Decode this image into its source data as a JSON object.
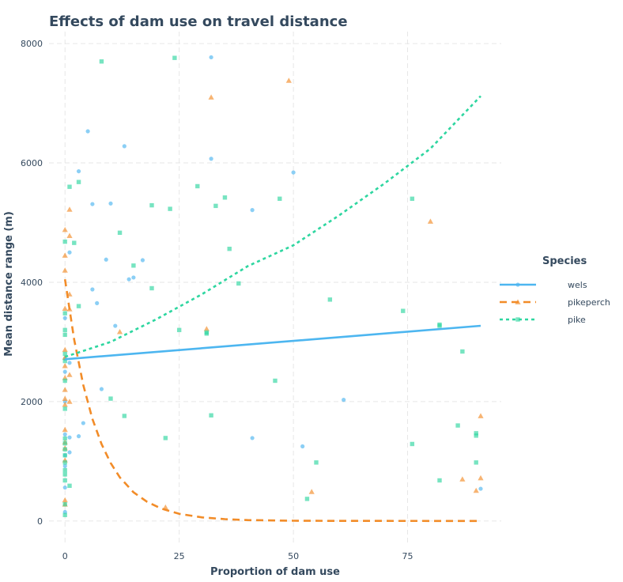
{
  "chart_data": {
    "type": "scatter",
    "title": "Effects of dam use on travel distance",
    "xlabel": "Proportion of dam use",
    "ylabel": "Mean distance range (m)",
    "xlim": [
      -3.5,
      95.5
    ],
    "ylim": [
      -400,
      8200
    ],
    "xticks": [
      0,
      25,
      50,
      75
    ],
    "yticks": [
      0,
      2000,
      4000,
      6000,
      8000
    ],
    "grid": true,
    "legend": {
      "title": "Species",
      "position": "right",
      "items": [
        "wels",
        "pikeperch",
        "pike"
      ]
    },
    "series": [
      {
        "name": "wels",
        "color": "#4db6f0",
        "marker": "circle",
        "line_style": "solid",
        "fit": [
          [
            0,
            2710
          ],
          [
            91,
            3270
          ]
        ],
        "points": [
          [
            0,
            2720
          ],
          [
            0,
            3400
          ],
          [
            0,
            2500
          ],
          [
            0,
            2000
          ],
          [
            0,
            1450
          ],
          [
            0,
            1100
          ],
          [
            0,
            920
          ],
          [
            0,
            560
          ],
          [
            0,
            150
          ],
          [
            1,
            4500
          ],
          [
            1,
            2650
          ],
          [
            1,
            1150
          ],
          [
            1,
            1400
          ],
          [
            3,
            5860
          ],
          [
            3,
            1420
          ],
          [
            4,
            1640
          ],
          [
            5,
            6530
          ],
          [
            6,
            5310
          ],
          [
            6,
            3880
          ],
          [
            7,
            3650
          ],
          [
            8,
            2210
          ],
          [
            9,
            4380
          ],
          [
            10,
            5320
          ],
          [
            11,
            3270
          ],
          [
            13,
            6280
          ],
          [
            14,
            4050
          ],
          [
            15,
            4080
          ],
          [
            17,
            4370
          ],
          [
            32,
            7770
          ],
          [
            32,
            6070
          ],
          [
            41,
            5210
          ],
          [
            41,
            1390
          ],
          [
            50,
            5840
          ],
          [
            52,
            1250
          ],
          [
            61,
            2030
          ],
          [
            91,
            540
          ]
        ]
      },
      {
        "name": "pikeperch",
        "color": "#f28c28",
        "marker": "triangle",
        "line_style": "dashed",
        "fit": [
          [
            0,
            4050
          ],
          [
            2,
            3040
          ],
          [
            4,
            2280
          ],
          [
            6,
            1710
          ],
          [
            8,
            1290
          ],
          [
            10,
            970
          ],
          [
            12,
            730
          ],
          [
            15,
            480
          ],
          [
            18,
            320
          ],
          [
            21,
            210
          ],
          [
            25,
            120
          ],
          [
            30,
            60
          ],
          [
            35,
            30
          ],
          [
            40,
            15
          ],
          [
            50,
            4
          ],
          [
            60,
            1
          ],
          [
            91,
            0
          ]
        ],
        "points": [
          [
            0,
            4880
          ],
          [
            0,
            4450
          ],
          [
            0,
            4200
          ],
          [
            0,
            3560
          ],
          [
            0,
            2870
          ],
          [
            0,
            2740
          ],
          [
            0,
            2600
          ],
          [
            0,
            2400
          ],
          [
            0,
            2200
          ],
          [
            0,
            2050
          ],
          [
            0,
            1950
          ],
          [
            0,
            1530
          ],
          [
            0,
            1320
          ],
          [
            0,
            1220
          ],
          [
            0,
            1020
          ],
          [
            0,
            350
          ],
          [
            0,
            280
          ],
          [
            1,
            5220
          ],
          [
            1,
            4780
          ],
          [
            1,
            3800
          ],
          [
            1,
            3550
          ],
          [
            1,
            2450
          ],
          [
            1,
            2000
          ],
          [
            12,
            3170
          ],
          [
            22,
            230
          ],
          [
            31,
            3220
          ],
          [
            32,
            7100
          ],
          [
            49,
            7380
          ],
          [
            54,
            490
          ],
          [
            80,
            5020
          ],
          [
            87,
            700
          ],
          [
            90,
            510
          ],
          [
            91,
            720
          ],
          [
            91,
            1760
          ]
        ]
      },
      {
        "name": "pike",
        "color": "#2ed6a0",
        "marker": "square",
        "line_style": "dotted",
        "fit": [
          [
            0,
            2750
          ],
          [
            10,
            3000
          ],
          [
            20,
            3380
          ],
          [
            30,
            3800
          ],
          [
            40,
            4270
          ],
          [
            50,
            4620
          ],
          [
            60,
            5120
          ],
          [
            70,
            5660
          ],
          [
            80,
            6240
          ],
          [
            91,
            7120
          ]
        ],
        "points": [
          [
            0,
            4680
          ],
          [
            0,
            3480
          ],
          [
            0,
            3200
          ],
          [
            0,
            3120
          ],
          [
            0,
            2800
          ],
          [
            0,
            2680
          ],
          [
            0,
            2350
          ],
          [
            0,
            1880
          ],
          [
            0,
            1380
          ],
          [
            0,
            1300
          ],
          [
            0,
            1200
          ],
          [
            0,
            1100
          ],
          [
            0,
            980
          ],
          [
            0,
            850
          ],
          [
            0,
            780
          ],
          [
            0,
            680
          ],
          [
            0,
            280
          ],
          [
            0,
            100
          ],
          [
            1,
            5600
          ],
          [
            1,
            590
          ],
          [
            2,
            4660
          ],
          [
            3,
            5680
          ],
          [
            3,
            3600
          ],
          [
            8,
            7700
          ],
          [
            10,
            2050
          ],
          [
            12,
            4830
          ],
          [
            13,
            1760
          ],
          [
            15,
            4280
          ],
          [
            19,
            5290
          ],
          [
            19,
            3900
          ],
          [
            22,
            1390
          ],
          [
            23,
            5230
          ],
          [
            24,
            7760
          ],
          [
            25,
            3200
          ],
          [
            29,
            5610
          ],
          [
            31,
            3160
          ],
          [
            31,
            3140
          ],
          [
            32,
            1770
          ],
          [
            33,
            5280
          ],
          [
            35,
            5420
          ],
          [
            36,
            4560
          ],
          [
            38,
            3980
          ],
          [
            46,
            2350
          ],
          [
            47,
            5400
          ],
          [
            53,
            370
          ],
          [
            55,
            980
          ],
          [
            58,
            3710
          ],
          [
            74,
            3520
          ],
          [
            76,
            5400
          ],
          [
            76,
            1290
          ],
          [
            82,
            3290
          ],
          [
            82,
            3270
          ],
          [
            82,
            680
          ],
          [
            86,
            1600
          ],
          [
            87,
            2840
          ],
          [
            90,
            1470
          ],
          [
            90,
            1430
          ],
          [
            90,
            980
          ]
        ]
      }
    ]
  }
}
